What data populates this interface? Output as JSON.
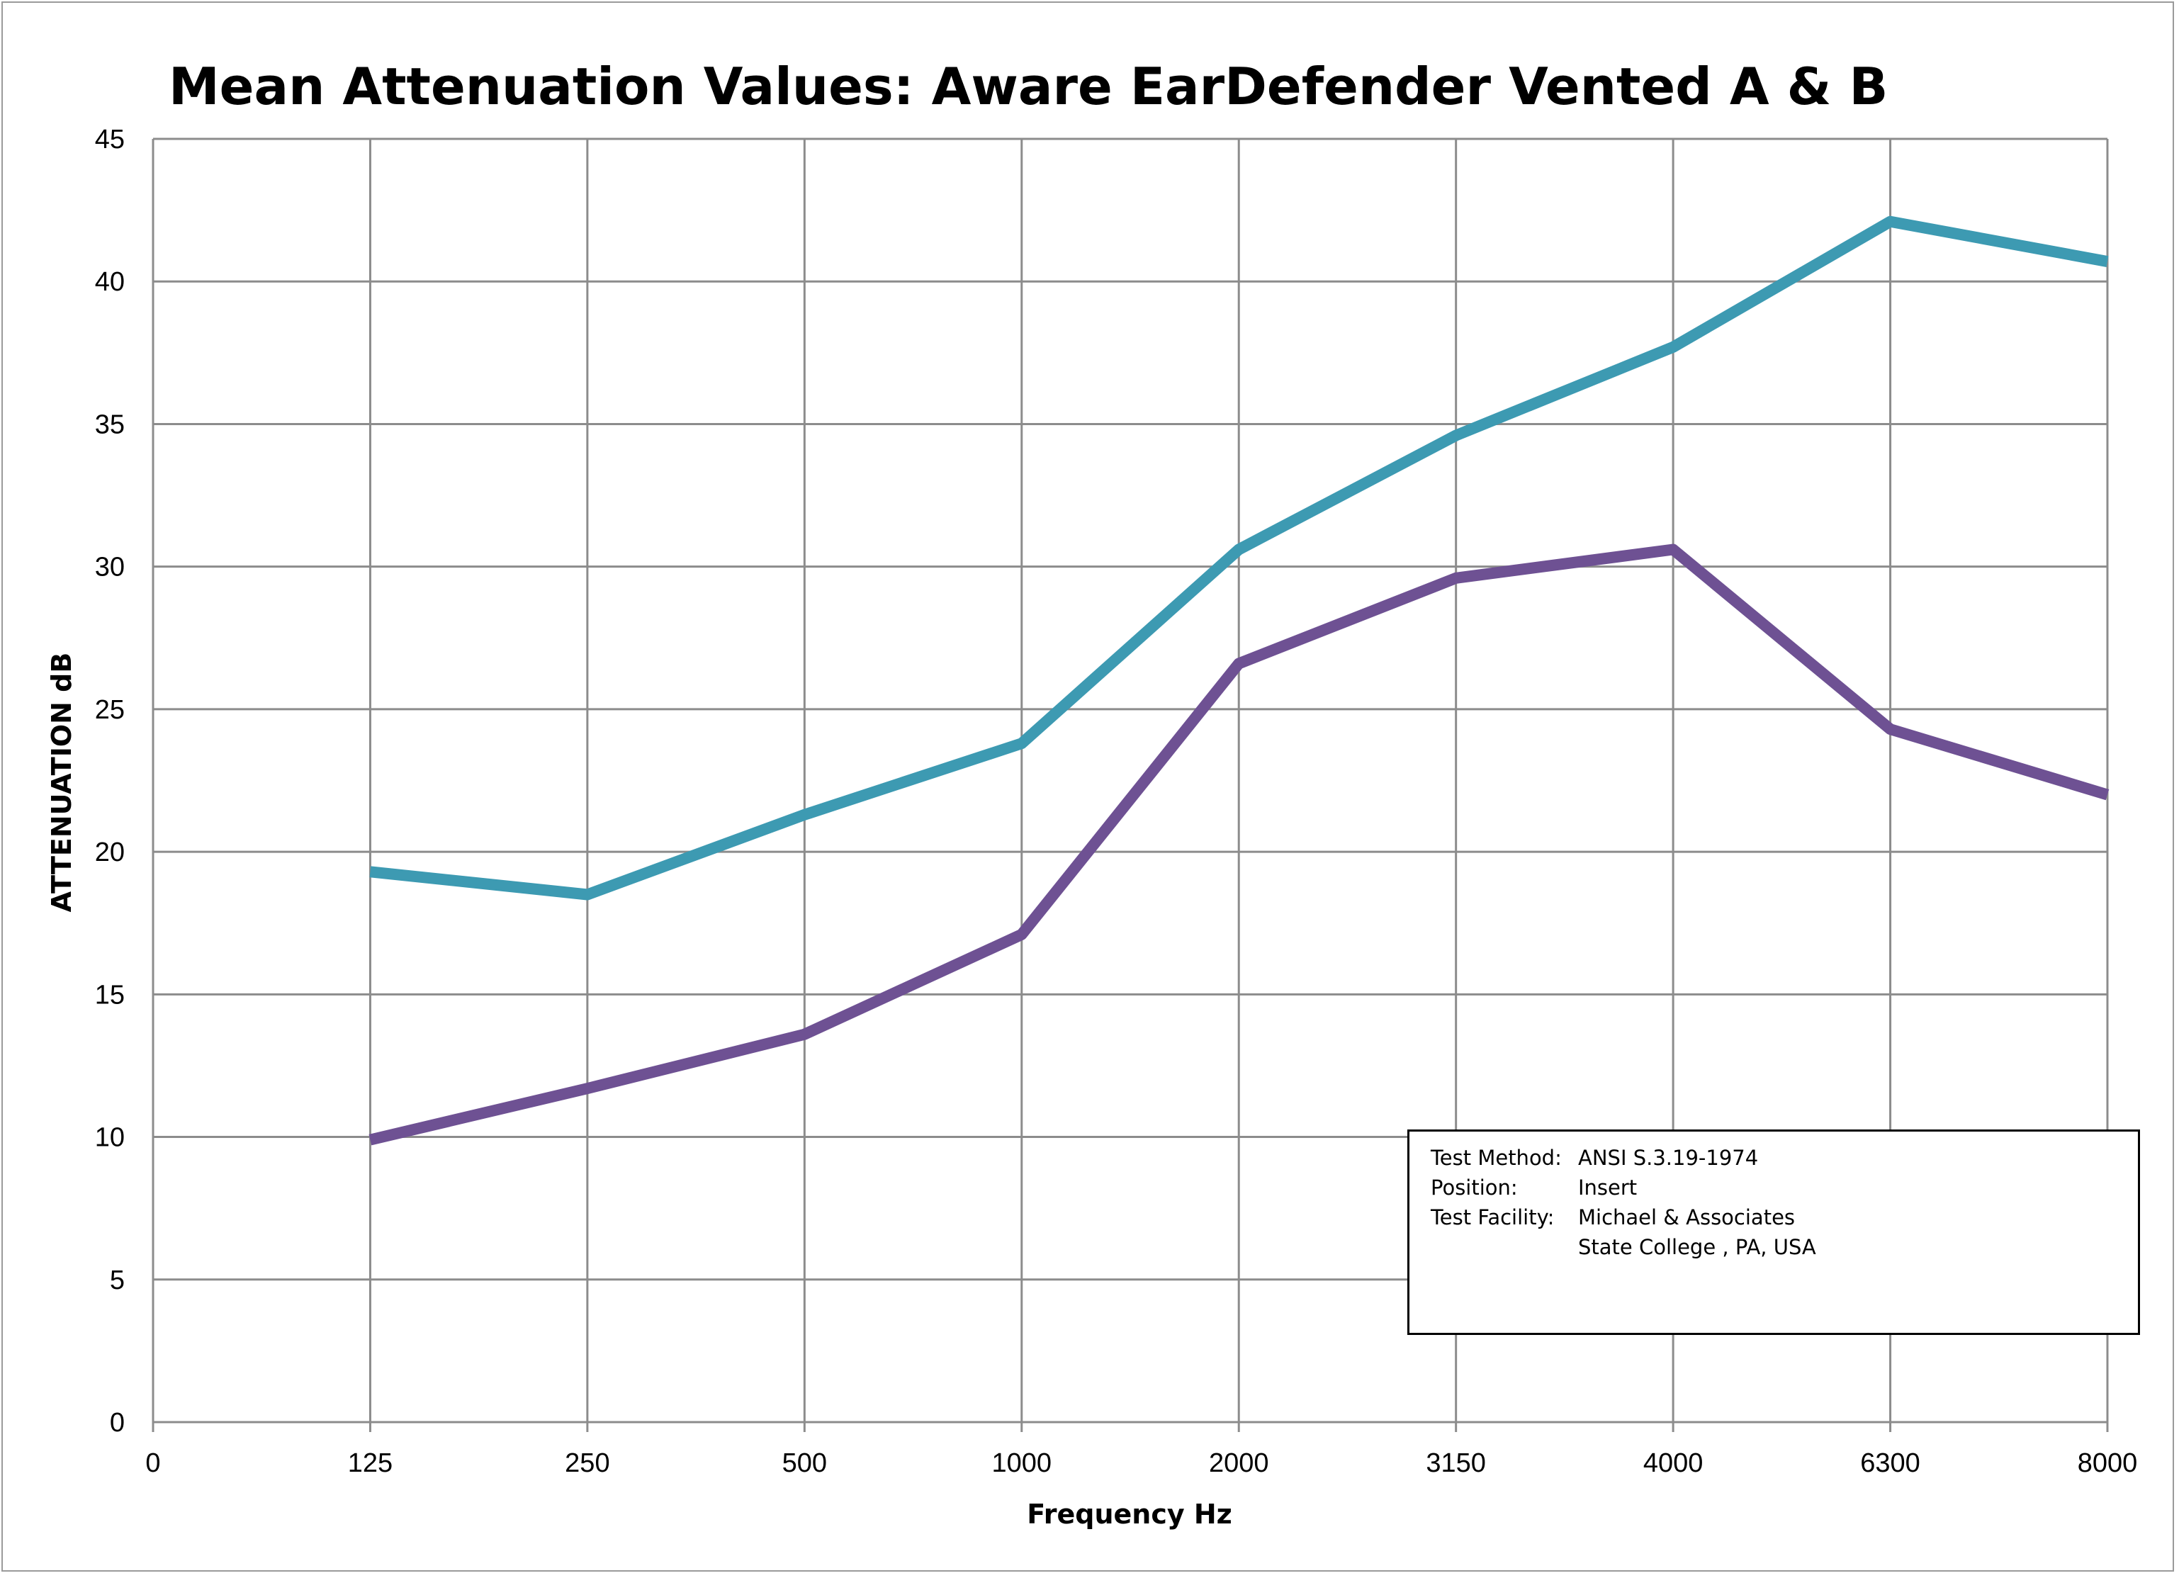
{
  "chart_data": {
    "type": "line",
    "title": "Mean Attenuation Values: Aware EarDefender Vented A & B",
    "xlabel": "Frequency Hz",
    "ylabel": "ATTENUATION dB",
    "x_ticks": [
      "0",
      "125",
      "250",
      "500",
      "1000",
      "2000",
      "3150",
      "4000",
      "6300",
      "8000"
    ],
    "categories": [
      "125",
      "250",
      "500",
      "1000",
      "2000",
      "3150",
      "4000",
      "6300",
      "8000"
    ],
    "ylim": [
      0,
      45
    ],
    "y_ticks": [
      0,
      5,
      10,
      15,
      20,
      25,
      30,
      35,
      40,
      45
    ],
    "grid": true,
    "series": [
      {
        "color": "#3d9ab2",
        "values": [
          19.3,
          18.5,
          21.3,
          23.8,
          30.6,
          34.6,
          37.7,
          42.1,
          40.7
        ]
      },
      {
        "color": "#6e5193",
        "values": [
          9.9,
          11.7,
          13.6,
          17.1,
          26.6,
          29.6,
          30.6,
          24.3,
          22.0
        ]
      }
    ]
  },
  "info_box": {
    "rows": [
      {
        "key": "Test Method:",
        "value": "ANSI S.3.19-1974"
      },
      {
        "key": "Position:",
        "value": "Insert"
      },
      {
        "key": "Test Facility:",
        "value": "Michael & Associates"
      },
      {
        "key": "",
        "value": "State College , PA, USA"
      }
    ]
  }
}
